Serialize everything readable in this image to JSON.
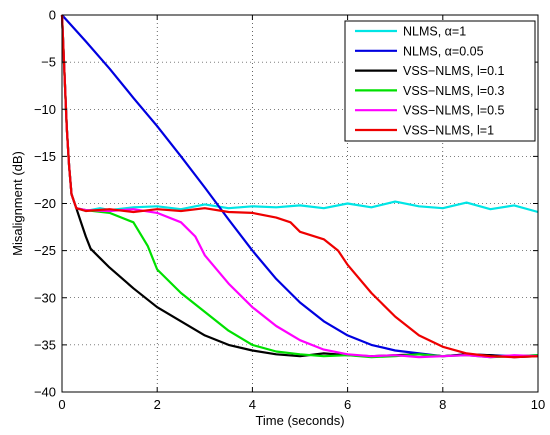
{
  "chart_data": {
    "type": "line",
    "xlabel": "Time (seconds)",
    "ylabel": "Misalignment (dB)",
    "xlim": [
      0,
      10
    ],
    "ylim": [
      -40,
      0
    ],
    "xticks": [
      "0",
      "2",
      "4",
      "6",
      "8",
      "10"
    ],
    "yticks": [
      "0",
      "−5",
      "−10",
      "−15",
      "−20",
      "−25",
      "−30",
      "−35",
      "−40"
    ],
    "grid": true,
    "legend_position": "top-right",
    "series": [
      {
        "name": "NLMS, α=1",
        "color": "#00e5e5",
        "x": [
          0,
          0.05,
          0.1,
          0.15,
          0.2,
          0.3,
          0.5,
          0.8,
          1,
          1.5,
          2,
          2.5,
          3,
          3.5,
          4,
          4.5,
          5,
          5.5,
          6,
          6.5,
          7,
          7.5,
          8,
          8.5,
          9,
          9.5,
          10
        ],
        "y": [
          0,
          -6,
          -12,
          -16,
          -19,
          -20.5,
          -20.8,
          -20.5,
          -20.7,
          -20.4,
          -20.3,
          -20.6,
          -20.1,
          -20.5,
          -20.3,
          -20.4,
          -20.2,
          -20.5,
          -20.0,
          -20.4,
          -19.8,
          -20.3,
          -20.5,
          -19.9,
          -20.6,
          -20.2,
          -20.9
        ]
      },
      {
        "name": "NLMS, α=0.05",
        "color": "#0000e0",
        "x": [
          0,
          0.5,
          1,
          1.5,
          2,
          2.5,
          3,
          3.5,
          4,
          4.5,
          5,
          5.5,
          6,
          6.5,
          7,
          7.5,
          8,
          8.5,
          9,
          9.5,
          10
        ],
        "y": [
          0,
          -2.8,
          -5.7,
          -8.8,
          -11.8,
          -15.0,
          -18.3,
          -21.7,
          -25.0,
          -28.0,
          -30.5,
          -32.5,
          -34.0,
          -35.0,
          -35.6,
          -35.9,
          -36.2,
          -36.0,
          -36.1,
          -36.2,
          -36.1
        ]
      },
      {
        "name": "VSS−NLMS, l=0.1",
        "color": "#000000",
        "x": [
          0,
          0.05,
          0.1,
          0.15,
          0.2,
          0.3,
          0.4,
          0.5,
          0.6,
          0.8,
          1,
          1.5,
          2,
          2.5,
          3,
          3.5,
          4,
          4.5,
          5,
          5.5,
          6,
          6.5,
          7,
          7.5,
          8,
          8.5,
          9,
          9.5,
          10
        ],
        "y": [
          0,
          -6,
          -12,
          -16,
          -19,
          -20.5,
          -22.0,
          -23.5,
          -24.8,
          -25.8,
          -26.8,
          -29.0,
          -31.0,
          -32.5,
          -34.0,
          -35.0,
          -35.6,
          -36.0,
          -36.2,
          -35.9,
          -36.1,
          -36.2,
          -36.1,
          -36.0,
          -36.2,
          -36.0,
          -36.1,
          -36.3,
          -36.2
        ]
      },
      {
        "name": "VSS−NLMS, l=0.3",
        "color": "#00e000",
        "x": [
          0,
          0.05,
          0.1,
          0.15,
          0.2,
          0.3,
          0.5,
          1,
          1.5,
          1.8,
          2,
          2.5,
          3,
          3.5,
          4,
          4.5,
          5,
          5.5,
          6,
          6.5,
          7,
          7.5,
          8,
          8.5,
          9,
          9.5,
          10
        ],
        "y": [
          0,
          -6,
          -12,
          -16,
          -19,
          -20.5,
          -20.7,
          -21.0,
          -22.0,
          -24.5,
          -27.0,
          -29.5,
          -31.5,
          -33.5,
          -35.0,
          -35.7,
          -36.0,
          -36.2,
          -36.1,
          -36.3,
          -36.2,
          -36.0,
          -36.2,
          -36.1,
          -36.3,
          -36.2,
          -36.1
        ]
      },
      {
        "name": "VSS−NLMS, l=0.5",
        "color": "#ff00ff",
        "x": [
          0,
          0.05,
          0.1,
          0.15,
          0.2,
          0.3,
          0.5,
          1,
          1.5,
          2,
          2.5,
          2.8,
          3,
          3.5,
          4,
          4.5,
          5,
          5.5,
          6,
          6.5,
          7,
          7.5,
          8,
          8.5,
          9,
          9.5,
          10
        ],
        "y": [
          0,
          -6,
          -12,
          -16,
          -19,
          -20.5,
          -20.7,
          -20.8,
          -20.6,
          -21.0,
          -22.0,
          -23.5,
          -25.5,
          -28.5,
          -31.0,
          -33.0,
          -34.5,
          -35.5,
          -36.0,
          -36.2,
          -36.1,
          -36.3,
          -36.2,
          -36.1,
          -36.3,
          -36.1,
          -36.2
        ]
      },
      {
        "name": "VSS−NLMS, l=1",
        "color": "#ee0000",
        "x": [
          0,
          0.05,
          0.1,
          0.15,
          0.2,
          0.3,
          0.5,
          1,
          1.5,
          2,
          2.5,
          3,
          3.5,
          4,
          4.5,
          4.8,
          5,
          5.5,
          5.8,
          6,
          6.5,
          7,
          7.5,
          8,
          8.5,
          9,
          9.5,
          10
        ],
        "y": [
          0,
          -6,
          -12,
          -16,
          -19,
          -20.5,
          -20.8,
          -20.6,
          -20.9,
          -20.6,
          -20.8,
          -20.5,
          -20.9,
          -21.0,
          -21.5,
          -22.0,
          -23.0,
          -23.8,
          -25.0,
          -26.5,
          -29.5,
          -32.0,
          -34.0,
          -35.2,
          -35.9,
          -36.2,
          -36.3,
          -36.2
        ]
      }
    ]
  }
}
